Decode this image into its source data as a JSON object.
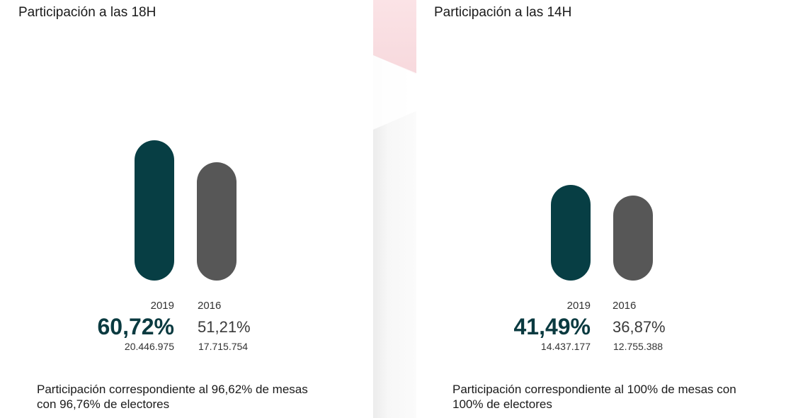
{
  "chart_data": [
    {
      "type": "bar",
      "title": "Participación a las 18H",
      "categories": [
        "2019",
        "2016"
      ],
      "values": [
        60.72,
        51.21
      ],
      "value_labels": [
        "60,72%",
        "51,21%"
      ],
      "voters": [
        "20.446.975",
        "17.715.754"
      ],
      "ylim": [
        0,
        100
      ],
      "colors": [
        "#073e44",
        "#575757"
      ],
      "note": "Participación correspondiente al 96,62% de mesas con 96,76% de electores"
    },
    {
      "type": "bar",
      "title": "Participación a las 14H",
      "categories": [
        "2019",
        "2016"
      ],
      "values": [
        41.49,
        36.87
      ],
      "value_labels": [
        "41,49%",
        "36,87%"
      ],
      "voters": [
        "14.437.177",
        "12.755.388"
      ],
      "ylim": [
        0,
        100
      ],
      "colors": [
        "#073e44",
        "#575757"
      ],
      "note": "Participación correspondiente al 100% de mesas con 100% de electores"
    }
  ]
}
